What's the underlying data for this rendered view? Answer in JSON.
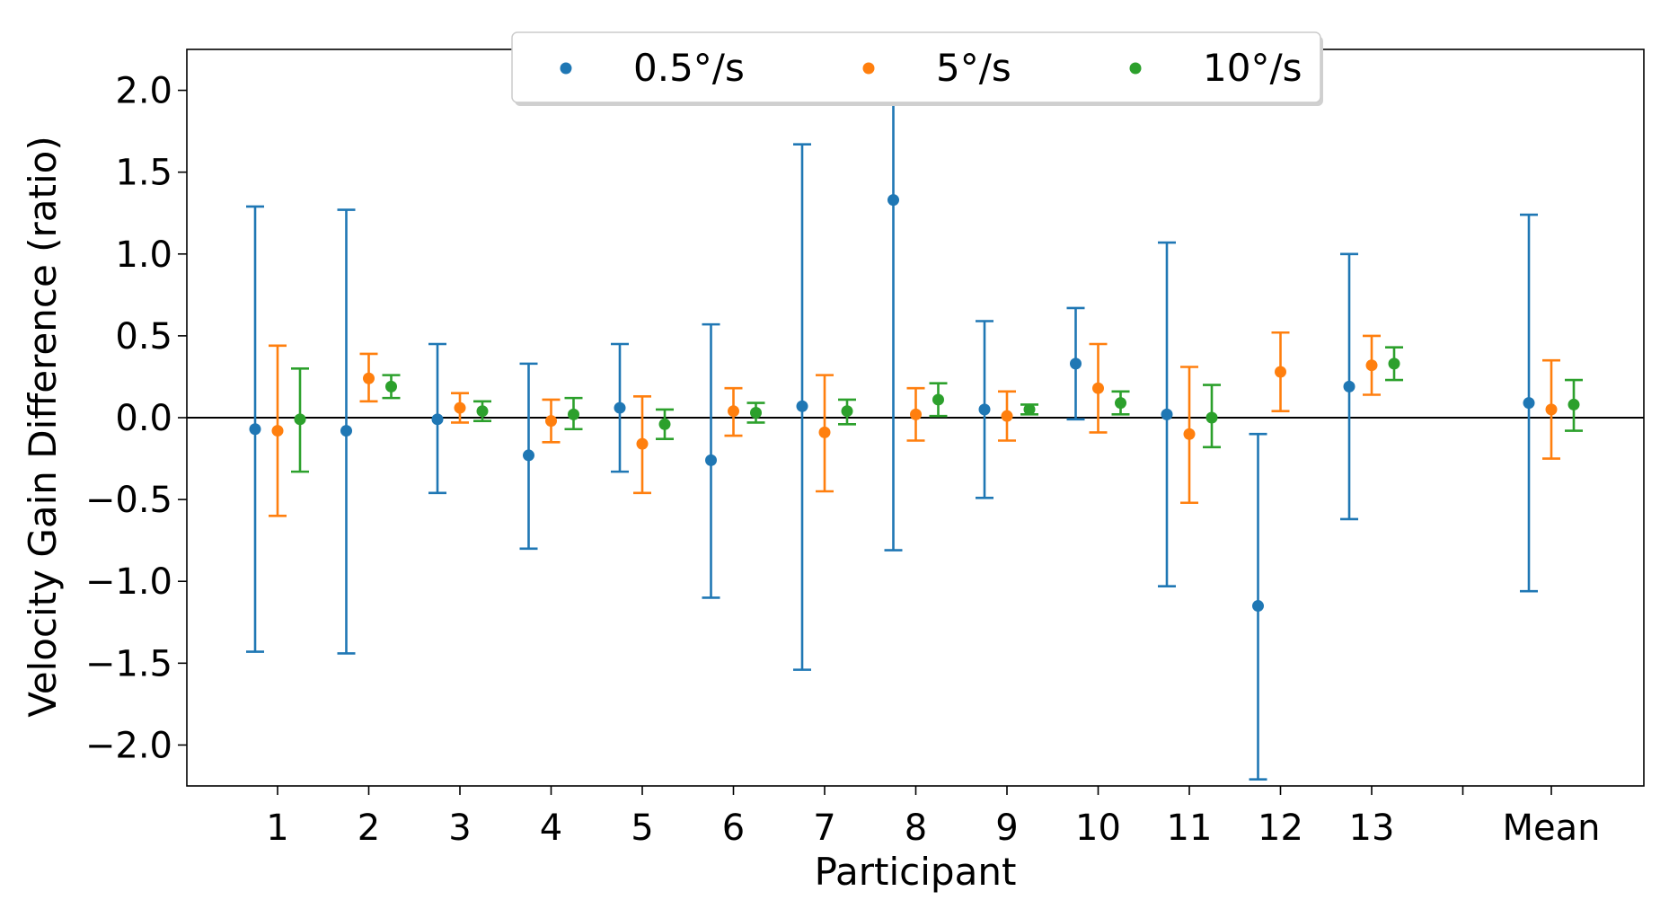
{
  "chart_data": {
    "type": "errorbar",
    "title": "",
    "xlabel": "Participant",
    "ylabel": "Velocity Gain Difference (ratio)",
    "ylim": [
      -2.25,
      2.25
    ],
    "yticks": [
      2.0,
      1.5,
      1.0,
      0.5,
      0.0,
      -0.5,
      -1.0,
      -1.5,
      -2.0
    ],
    "ytick_labels": [
      "2.0",
      "1.5",
      "1.0",
      "0.5",
      "0.0",
      "−0.5",
      "−1.0",
      "−1.5",
      "−2.0"
    ],
    "categories": [
      "1",
      "2",
      "3",
      "4",
      "5",
      "6",
      "7",
      "8",
      "9",
      "10",
      "11",
      "12",
      "13",
      "Mean"
    ],
    "reference_line": 0.0,
    "legend_position": "top-center",
    "series": [
      {
        "name": "0.5°/s",
        "color": "#1f77b4",
        "means": [
          -0.07,
          -0.08,
          -0.01,
          -0.23,
          0.06,
          -0.26,
          0.07,
          1.33,
          0.05,
          0.33,
          0.02,
          -1.15,
          0.19,
          0.09
        ],
        "lower": [
          -1.43,
          -1.44,
          -0.46,
          -0.8,
          -0.33,
          -1.1,
          -1.54,
          -0.81,
          -0.49,
          -0.01,
          -1.03,
          -2.21,
          -0.62,
          -1.06
        ],
        "upper": [
          1.29,
          1.27,
          0.45,
          0.33,
          0.45,
          0.57,
          1.67,
          2.25,
          0.59,
          0.67,
          1.07,
          -0.1,
          1.0,
          1.24
        ]
      },
      {
        "name": "5°/s",
        "color": "#ff7f0e",
        "means": [
          -0.08,
          0.24,
          0.06,
          -0.02,
          -0.16,
          0.04,
          -0.09,
          0.02,
          0.01,
          0.18,
          -0.1,
          0.28,
          0.32,
          0.05
        ],
        "lower": [
          -0.6,
          0.1,
          -0.03,
          -0.15,
          -0.46,
          -0.11,
          -0.45,
          -0.14,
          -0.14,
          -0.09,
          -0.52,
          0.04,
          0.14,
          -0.25
        ],
        "upper": [
          0.44,
          0.39,
          0.15,
          0.11,
          0.13,
          0.18,
          0.26,
          0.18,
          0.16,
          0.45,
          0.31,
          0.52,
          0.5,
          0.35
        ]
      },
      {
        "name": "10°/s",
        "color": "#2ca02c",
        "means": [
          -0.01,
          0.19,
          0.04,
          0.02,
          -0.04,
          0.03,
          0.04,
          0.11,
          0.05,
          0.09,
          0.0,
          null,
          0.33,
          0.08
        ],
        "lower": [
          -0.33,
          0.12,
          -0.02,
          -0.07,
          -0.13,
          -0.03,
          -0.04,
          0.01,
          0.02,
          0.02,
          -0.18,
          null,
          0.23,
          -0.08
        ],
        "upper": [
          0.3,
          0.26,
          0.1,
          0.12,
          0.05,
          0.09,
          0.11,
          0.21,
          0.08,
          0.16,
          0.2,
          null,
          0.43,
          0.23
        ]
      }
    ]
  }
}
